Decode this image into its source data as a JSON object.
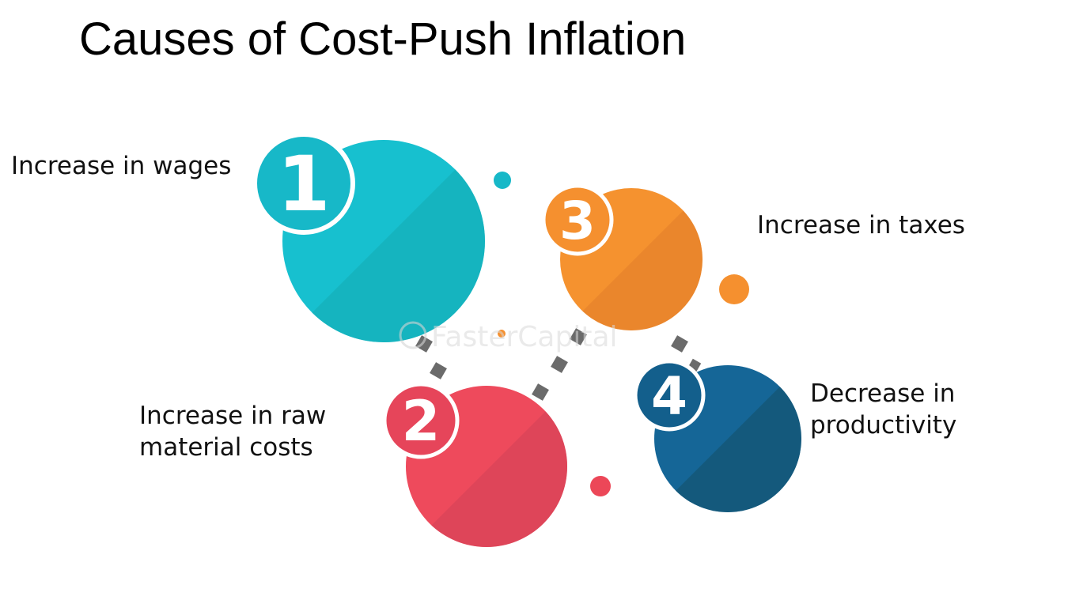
{
  "title": "Causes of Cost-Push Inflation",
  "watermark": "FasterCapital",
  "colors": {
    "teal": "#17b8c8",
    "teal_dark": "#14a9b3",
    "orange": "#f5902f",
    "orange_dark": "#e8832d",
    "red": "#ec4758",
    "red_dark": "#d94457",
    "blue": "#146394",
    "blue_dark": "#14587a",
    "connector": "#6b6b6b"
  },
  "causes": [
    {
      "number": "1",
      "lines": [
        "Increase in wages"
      ]
    },
    {
      "number": "2",
      "lines": [
        "Increase in raw",
        "material costs"
      ]
    },
    {
      "number": "3",
      "lines": [
        "Increase in taxes"
      ]
    },
    {
      "number": "4",
      "lines": [
        "Decrease in",
        "productivity"
      ]
    }
  ]
}
